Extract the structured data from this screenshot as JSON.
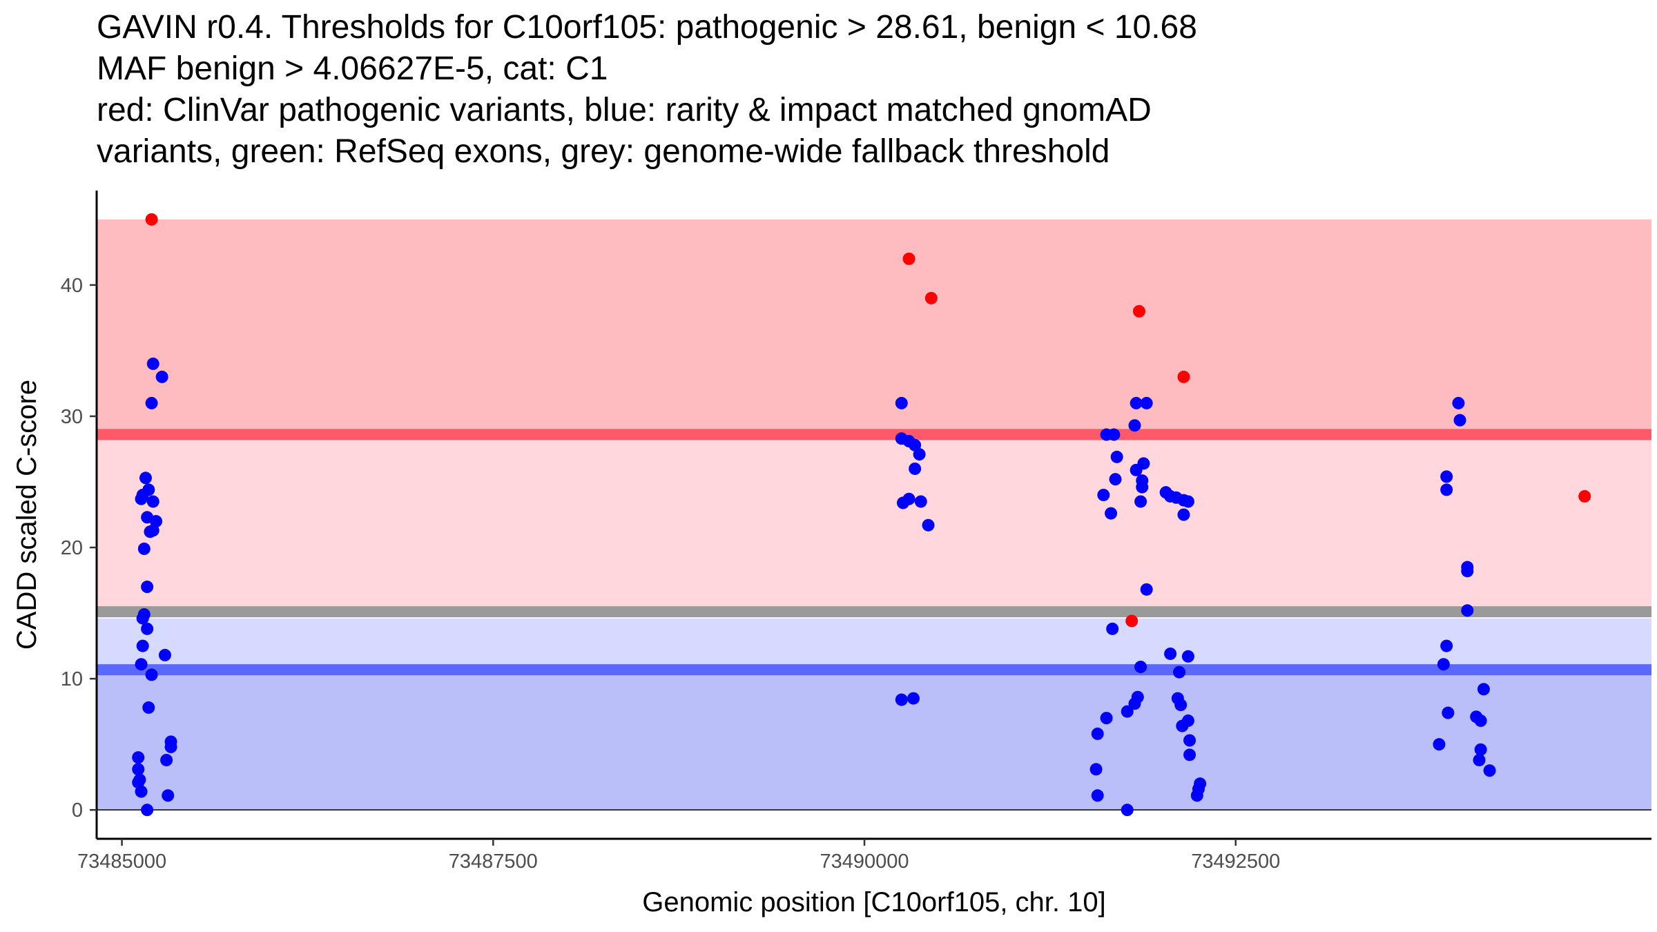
{
  "title_lines": [
    "GAVIN r0.4. Thresholds for C10orf105: pathogenic > 28.61, benign < 10.68",
    "MAF benign > 4.06627E-5, cat: C1",
    "red: ClinVar pathogenic variants, blue: rarity & impact matched gnomAD",
    "variants, green: RefSeq exons, grey: genome-wide fallback threshold"
  ],
  "chart_data": {
    "type": "scatter",
    "xlabel": "Genomic position [C10orf105, chr. 10]",
    "ylabel": "CADD scaled C-score",
    "xlim": [
      73484830,
      73495300
    ],
    "ylim": [
      -2.2,
      47.2
    ],
    "x_ticks": [
      73485000,
      73487500,
      73490000,
      73492500
    ],
    "x_tick_labels": [
      "73485000",
      "73487500",
      "73490000",
      "73492500"
    ],
    "y_ticks": [
      0,
      10,
      20,
      30,
      40
    ],
    "y_tick_labels": [
      "0",
      "10",
      "20",
      "30",
      "40"
    ],
    "bands": [
      {
        "name": "pathogenic-region",
        "ymin": 28.61,
        "ymax": 45,
        "color": "#ffbcc0"
      },
      {
        "name": "intermediate-pathogenic-region",
        "ymin": 15,
        "ymax": 28.61,
        "color": "#ffd7dc"
      },
      {
        "name": "intermediate-benign-region",
        "ymin": 10.68,
        "ymax": 14.6,
        "color": "#d7daff"
      },
      {
        "name": "benign-region",
        "ymin": 0,
        "ymax": 10.68,
        "color": "#babef9"
      }
    ],
    "threshold_lines": [
      {
        "name": "pathogenic-threshold",
        "y": 28.61,
        "color": "#fc5a68"
      },
      {
        "name": "fallback-threshold",
        "y": 15.1,
        "color": "#9a9a9a"
      },
      {
        "name": "benign-threshold",
        "y": 10.68,
        "color": "#5a68fc"
      }
    ],
    "series": [
      {
        "name": "ClinVar pathogenic",
        "color": "#ff0000",
        "points": [
          [
            73485200,
            45
          ],
          [
            73490300,
            42
          ],
          [
            73490450,
            39
          ],
          [
            73491850,
            38
          ],
          [
            73492150,
            33
          ],
          [
            73494850,
            23.9
          ],
          [
            73491800,
            14.4
          ]
        ]
      },
      {
        "name": "gnomAD matched",
        "color": "#0000ff",
        "points": [
          [
            73485210,
            34
          ],
          [
            73485270,
            33
          ],
          [
            73485200,
            31
          ],
          [
            73485160,
            25.3
          ],
          [
            73485140,
            24
          ],
          [
            73485180,
            24.4
          ],
          [
            73485130,
            23.7
          ],
          [
            73485210,
            23.5
          ],
          [
            73485170,
            22.3
          ],
          [
            73485230,
            22
          ],
          [
            73485190,
            21.2
          ],
          [
            73485210,
            21.3
          ],
          [
            73485150,
            19.9
          ],
          [
            73485170,
            17
          ],
          [
            73485150,
            14.9
          ],
          [
            73485140,
            14.6
          ],
          [
            73485170,
            13.8
          ],
          [
            73485140,
            12.5
          ],
          [
            73485290,
            11.8
          ],
          [
            73485130,
            11.1
          ],
          [
            73485200,
            10.3
          ],
          [
            73485180,
            7.8
          ],
          [
            73485330,
            5.2
          ],
          [
            73485330,
            4.8
          ],
          [
            73485300,
            3.8
          ],
          [
            73485110,
            4
          ],
          [
            73485110,
            3.1
          ],
          [
            73485120,
            2.3
          ],
          [
            73485110,
            2.1
          ],
          [
            73485130,
            1.4
          ],
          [
            73485310,
            1.1
          ],
          [
            73485170,
            0
          ],
          [
            73490250,
            31
          ],
          [
            73490250,
            28.3
          ],
          [
            73490300,
            28.1
          ],
          [
            73490340,
            27.8
          ],
          [
            73490370,
            27.1
          ],
          [
            73490340,
            26
          ],
          [
            73490300,
            23.7
          ],
          [
            73490260,
            23.4
          ],
          [
            73490380,
            23.5
          ],
          [
            73490430,
            21.7
          ],
          [
            73490250,
            8.4
          ],
          [
            73490330,
            8.5
          ],
          [
            73491900,
            31
          ],
          [
            73491830,
            31
          ],
          [
            73491680,
            28.6
          ],
          [
            73491630,
            28.6
          ],
          [
            73491820,
            29.3
          ],
          [
            73491700,
            26.9
          ],
          [
            73491880,
            26.4
          ],
          [
            73491830,
            25.9
          ],
          [
            73491690,
            25.2
          ],
          [
            73491870,
            25.1
          ],
          [
            73491870,
            24.6
          ],
          [
            73492030,
            24.2
          ],
          [
            73492060,
            23.9
          ],
          [
            73492150,
            23.6
          ],
          [
            73491610,
            24
          ],
          [
            73491860,
            23.5
          ],
          [
            73492150,
            22.5
          ],
          [
            73492100,
            23.8
          ],
          [
            73492180,
            23.5
          ],
          [
            73491660,
            22.6
          ],
          [
            73491900,
            16.8
          ],
          [
            73491670,
            13.8
          ],
          [
            73492060,
            11.9
          ],
          [
            73492180,
            11.7
          ],
          [
            73491860,
            10.9
          ],
          [
            73492120,
            10.5
          ],
          [
            73491840,
            8.6
          ],
          [
            73492110,
            8.5
          ],
          [
            73492130,
            8
          ],
          [
            73491820,
            8.1
          ],
          [
            73491770,
            7.5
          ],
          [
            73491630,
            7
          ],
          [
            73492180,
            6.8
          ],
          [
            73492140,
            6.4
          ],
          [
            73491570,
            5.8
          ],
          [
            73492190,
            5.3
          ],
          [
            73492190,
            4.2
          ],
          [
            73491560,
            3.1
          ],
          [
            73492260,
            2
          ],
          [
            73492250,
            1.6
          ],
          [
            73492240,
            1.1
          ],
          [
            73491570,
            1.1
          ],
          [
            73491770,
            0
          ],
          [
            73494000,
            31
          ],
          [
            73494010,
            29.7
          ],
          [
            73493920,
            25.4
          ],
          [
            73493920,
            24.4
          ],
          [
            73494060,
            18.5
          ],
          [
            73494060,
            18.2
          ],
          [
            73494060,
            15.2
          ],
          [
            73493920,
            12.5
          ],
          [
            73493900,
            11.1
          ],
          [
            73494170,
            9.2
          ],
          [
            73493930,
            7.4
          ],
          [
            73494120,
            7.1
          ],
          [
            73494150,
            6.8
          ],
          [
            73493870,
            5
          ],
          [
            73494150,
            4.6
          ],
          [
            73494140,
            3.8
          ],
          [
            73494210,
            3
          ]
        ]
      }
    ]
  }
}
